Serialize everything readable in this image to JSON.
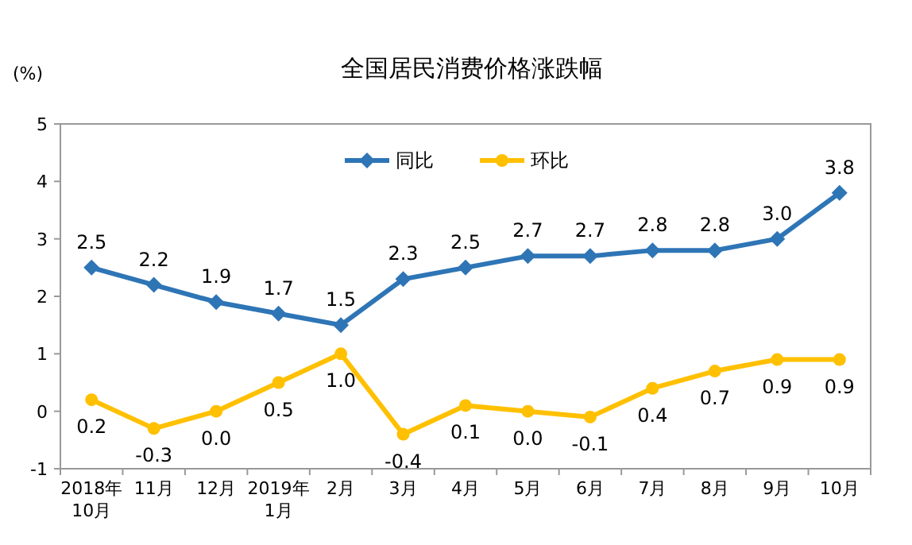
{
  "chart_data": {
    "type": "line",
    "title": "全国居民消费价格涨跌幅",
    "ylabel": "(%)",
    "categories": [
      "2018年\n10月",
      "11月",
      "12月",
      "2019年\n1月",
      "2月",
      "3月",
      "4月",
      "5月",
      "6月",
      "7月",
      "8月",
      "9月",
      "10月"
    ],
    "series": [
      {
        "name": "同比",
        "color": "#2e75b6",
        "marker": "diamond",
        "values": [
          2.5,
          2.2,
          1.9,
          1.7,
          1.5,
          2.3,
          2.5,
          2.7,
          2.7,
          2.8,
          2.8,
          3.0,
          3.8
        ],
        "value_labels": [
          "2.5",
          "2.2",
          "1.9",
          "1.7",
          "1.5",
          "2.3",
          "2.5",
          "2.7",
          "2.7",
          "2.8",
          "2.8",
          "3.0",
          "3.8"
        ]
      },
      {
        "name": "环比",
        "color": "#ffc000",
        "marker": "circle",
        "values": [
          0.2,
          -0.3,
          0.0,
          0.5,
          1.0,
          -0.4,
          0.1,
          0.0,
          -0.1,
          0.4,
          0.7,
          0.9,
          0.9
        ],
        "value_labels": [
          "0.2",
          "-0.3",
          "0.0",
          "0.5",
          "1.0",
          "-0.4",
          "0.1",
          "0.0",
          "-0.1",
          "0.4",
          "0.7",
          "0.9",
          "0.9"
        ]
      }
    ],
    "ylim": [
      -1,
      5
    ],
    "yticks": [
      -1,
      0,
      1,
      2,
      3,
      4,
      5
    ],
    "legend": "top",
    "grid": false
  }
}
